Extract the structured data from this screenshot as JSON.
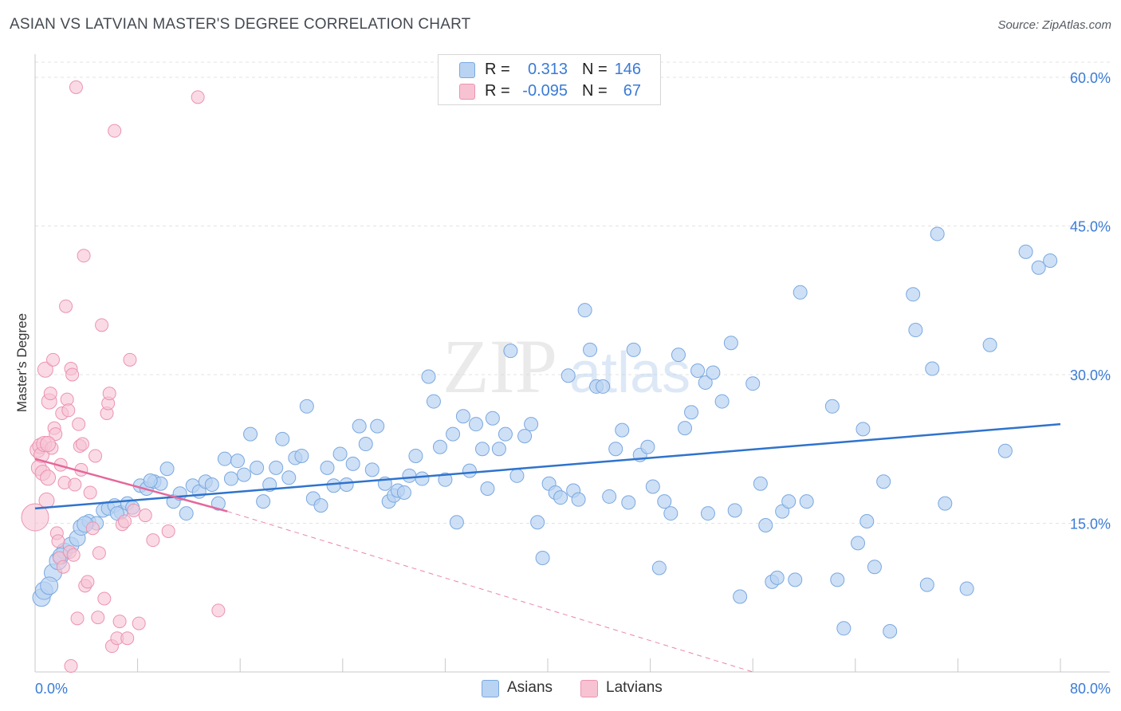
{
  "header": {
    "title": "ASIAN VS LATVIAN MASTER'S DEGREE CORRELATION CHART",
    "source": "Source: ZipAtlas.com"
  },
  "watermark": {
    "zip": "ZIP",
    "atlas": "atlas"
  },
  "legend": {
    "rows": [
      {
        "r_label": "R =",
        "r_value": "0.313",
        "n_label": "N =",
        "n_value": "146"
      },
      {
        "r_label": "R =",
        "r_value": "-0.095",
        "n_label": "N =",
        "n_value": "67"
      }
    ]
  },
  "bottom_legend": {
    "asians": "Asians",
    "latvians": "Latvians"
  },
  "colors": {
    "asian_fill": "#b9d3f2",
    "asian_stroke": "#7aa8e0",
    "asian_line": "#2f73cc",
    "latvian_fill": "#f7c3d3",
    "latvian_stroke": "#ec93b0",
    "latvian_line": "#e4679a",
    "tick_label": "#3a7bd5",
    "grid": "#e3e3e3"
  },
  "chart_data": {
    "type": "scatter",
    "title": "ASIAN VS LATVIAN MASTER'S DEGREE CORRELATION CHART",
    "xlabel": "",
    "ylabel": "Master's Degree",
    "xlim": [
      0,
      80
    ],
    "ylim": [
      0,
      60
    ],
    "x_tick_labels": [
      "0.0%",
      "80.0%"
    ],
    "y_ticks": [
      15,
      30,
      45,
      60
    ],
    "y_tick_labels": [
      "15.0%",
      "30.0%",
      "45.0%",
      "60.0%"
    ],
    "grid": true,
    "legend_position": "top-center",
    "series": [
      {
        "name": "Asians",
        "r": 0.313,
        "n": 146,
        "trend": {
          "x": [
            0,
            80
          ],
          "y": [
            16.5,
            25.0
          ]
        },
        "points": [
          [
            0.5,
            7.5
          ],
          [
            0.7,
            8.2
          ],
          [
            1.4,
            10.0
          ],
          [
            1.8,
            11.2
          ],
          [
            2.3,
            12.2
          ],
          [
            2.8,
            12.8
          ],
          [
            3.3,
            13.5
          ],
          [
            3.6,
            14.6
          ],
          [
            4.2,
            15.2
          ],
          [
            4.8,
            15.0
          ],
          [
            5.3,
            16.3
          ],
          [
            5.7,
            16.5
          ],
          [
            6.2,
            16.8
          ],
          [
            6.7,
            16.1
          ],
          [
            7.2,
            17.0
          ],
          [
            7.6,
            16.6
          ],
          [
            8.2,
            18.8
          ],
          [
            8.7,
            18.5
          ],
          [
            9.3,
            19.2
          ],
          [
            9.8,
            19.0
          ],
          [
            10.3,
            20.5
          ],
          [
            10.8,
            17.2
          ],
          [
            11.3,
            18.0
          ],
          [
            11.8,
            16.0
          ],
          [
            12.3,
            18.8
          ],
          [
            12.8,
            18.2
          ],
          [
            13.3,
            19.2
          ],
          [
            13.8,
            18.9
          ],
          [
            14.3,
            17.0
          ],
          [
            14.8,
            21.5
          ],
          [
            15.3,
            19.5
          ],
          [
            15.8,
            21.3
          ],
          [
            16.3,
            19.9
          ],
          [
            16.8,
            24.0
          ],
          [
            17.3,
            20.6
          ],
          [
            17.8,
            17.2
          ],
          [
            18.3,
            18.9
          ],
          [
            18.8,
            20.6
          ],
          [
            19.3,
            23.5
          ],
          [
            19.8,
            19.6
          ],
          [
            20.3,
            21.6
          ],
          [
            20.8,
            21.8
          ],
          [
            21.2,
            26.8
          ],
          [
            21.7,
            17.5
          ],
          [
            22.3,
            16.8
          ],
          [
            22.8,
            20.6
          ],
          [
            23.3,
            18.8
          ],
          [
            23.8,
            22.0
          ],
          [
            24.3,
            18.9
          ],
          [
            24.8,
            21.0
          ],
          [
            25.3,
            24.8
          ],
          [
            25.8,
            23.0
          ],
          [
            26.3,
            20.4
          ],
          [
            26.7,
            24.8
          ],
          [
            27.3,
            19.0
          ],
          [
            27.6,
            17.2
          ],
          [
            28.0,
            17.8
          ],
          [
            28.3,
            18.3
          ],
          [
            28.8,
            18.1
          ],
          [
            29.2,
            19.8
          ],
          [
            29.7,
            21.8
          ],
          [
            30.2,
            19.5
          ],
          [
            30.7,
            29.8
          ],
          [
            31.1,
            27.3
          ],
          [
            31.6,
            22.7
          ],
          [
            32.0,
            19.4
          ],
          [
            32.6,
            24.0
          ],
          [
            32.9,
            15.1
          ],
          [
            33.4,
            25.8
          ],
          [
            33.9,
            20.3
          ],
          [
            34.4,
            25.0
          ],
          [
            34.9,
            22.5
          ],
          [
            35.3,
            18.5
          ],
          [
            35.7,
            25.6
          ],
          [
            36.2,
            22.5
          ],
          [
            36.7,
            24.0
          ],
          [
            37.1,
            32.4
          ],
          [
            37.6,
            19.8
          ],
          [
            38.2,
            23.8
          ],
          [
            38.7,
            25.0
          ],
          [
            39.2,
            15.1
          ],
          [
            39.6,
            11.5
          ],
          [
            40.1,
            19.0
          ],
          [
            40.6,
            18.1
          ],
          [
            41.0,
            17.6
          ],
          [
            41.6,
            29.9
          ],
          [
            42.0,
            18.3
          ],
          [
            42.4,
            17.4
          ],
          [
            42.9,
            36.5
          ],
          [
            43.3,
            32.5
          ],
          [
            43.8,
            28.8
          ],
          [
            44.3,
            28.8
          ],
          [
            44.8,
            17.7
          ],
          [
            45.3,
            22.5
          ],
          [
            45.8,
            24.4
          ],
          [
            46.3,
            17.1
          ],
          [
            46.7,
            32.5
          ],
          [
            47.2,
            21.9
          ],
          [
            47.8,
            22.7
          ],
          [
            48.2,
            18.7
          ],
          [
            48.7,
            10.5
          ],
          [
            49.1,
            17.2
          ],
          [
            49.6,
            16.0
          ],
          [
            50.2,
            32.0
          ],
          [
            50.7,
            24.6
          ],
          [
            51.2,
            26.2
          ],
          [
            51.7,
            30.4
          ],
          [
            52.3,
            29.2
          ],
          [
            52.5,
            16.0
          ],
          [
            52.9,
            30.2
          ],
          [
            53.6,
            27.3
          ],
          [
            54.3,
            33.2
          ],
          [
            54.6,
            16.3
          ],
          [
            55.0,
            7.6
          ],
          [
            56.0,
            29.1
          ],
          [
            56.6,
            19.0
          ],
          [
            57.0,
            14.8
          ],
          [
            57.5,
            9.1
          ],
          [
            57.9,
            9.5
          ],
          [
            58.3,
            16.2
          ],
          [
            58.8,
            17.2
          ],
          [
            59.3,
            9.3
          ],
          [
            59.7,
            38.3
          ],
          [
            60.2,
            17.2
          ],
          [
            62.2,
            26.8
          ],
          [
            62.6,
            9.3
          ],
          [
            63.1,
            4.4
          ],
          [
            64.2,
            13.0
          ],
          [
            64.6,
            24.5
          ],
          [
            64.9,
            15.2
          ],
          [
            65.5,
            10.6
          ],
          [
            66.2,
            19.2
          ],
          [
            66.7,
            4.1
          ],
          [
            68.5,
            38.1
          ],
          [
            68.7,
            34.5
          ],
          [
            69.6,
            8.8
          ],
          [
            70.0,
            30.6
          ],
          [
            70.4,
            44.2
          ],
          [
            71.0,
            17.0
          ],
          [
            72.7,
            8.4
          ],
          [
            74.5,
            33.0
          ],
          [
            75.7,
            22.3
          ],
          [
            77.3,
            42.4
          ],
          [
            78.3,
            40.8
          ],
          [
            79.2,
            41.5
          ],
          [
            1.1,
            8.7
          ],
          [
            2.0,
            11.7
          ],
          [
            3.9,
            14.9
          ],
          [
            6.4,
            16.0
          ],
          [
            9.0,
            19.3
          ]
        ]
      },
      {
        "name": "Latvians",
        "r": -0.095,
        "n": 67,
        "trend": {
          "x": [
            0,
            15
          ],
          "y": [
            21.5,
            16.2
          ]
        },
        "trend_extended": {
          "x": [
            15,
            56
          ],
          "y": [
            16.2,
            0
          ]
        },
        "points": [
          [
            0.0,
            15.6
          ],
          [
            0.2,
            22.4
          ],
          [
            0.3,
            20.6
          ],
          [
            0.4,
            22.8
          ],
          [
            0.5,
            21.9
          ],
          [
            0.6,
            20.1
          ],
          [
            0.7,
            23.0
          ],
          [
            0.8,
            30.5
          ],
          [
            0.9,
            17.3
          ],
          [
            1.0,
            19.6
          ],
          [
            1.1,
            27.3
          ],
          [
            1.2,
            28.1
          ],
          [
            1.3,
            22.6
          ],
          [
            1.4,
            31.5
          ],
          [
            1.5,
            24.6
          ],
          [
            1.6,
            24.0
          ],
          [
            1.7,
            14.0
          ],
          [
            1.8,
            13.2
          ],
          [
            1.9,
            11.5
          ],
          [
            2.0,
            20.9
          ],
          [
            2.1,
            26.1
          ],
          [
            2.2,
            10.6
          ],
          [
            2.3,
            19.1
          ],
          [
            2.4,
            36.9
          ],
          [
            2.5,
            27.5
          ],
          [
            2.6,
            26.4
          ],
          [
            2.7,
            12.1
          ],
          [
            2.8,
            30.6
          ],
          [
            2.9,
            30.0
          ],
          [
            3.0,
            11.8
          ],
          [
            3.1,
            18.9
          ],
          [
            3.2,
            59.0
          ],
          [
            3.3,
            5.4
          ],
          [
            3.4,
            25.0
          ],
          [
            3.5,
            22.8
          ],
          [
            3.6,
            20.4
          ],
          [
            3.7,
            23.0
          ],
          [
            3.8,
            42.0
          ],
          [
            3.9,
            8.7
          ],
          [
            4.1,
            9.1
          ],
          [
            4.3,
            18.1
          ],
          [
            4.5,
            14.5
          ],
          [
            4.7,
            21.8
          ],
          [
            4.9,
            5.5
          ],
          [
            5.0,
            12.0
          ],
          [
            5.2,
            35.0
          ],
          [
            5.4,
            7.4
          ],
          [
            5.6,
            26.1
          ],
          [
            5.7,
            27.1
          ],
          [
            5.8,
            28.1
          ],
          [
            6.0,
            2.6
          ],
          [
            6.2,
            54.6
          ],
          [
            6.4,
            3.4
          ],
          [
            6.6,
            5.1
          ],
          [
            6.8,
            14.9
          ],
          [
            7.0,
            15.2
          ],
          [
            7.2,
            3.4
          ],
          [
            7.4,
            31.5
          ],
          [
            7.7,
            16.3
          ],
          [
            8.1,
            4.9
          ],
          [
            8.6,
            15.8
          ],
          [
            9.2,
            13.3
          ],
          [
            10.4,
            14.2
          ],
          [
            12.7,
            58.0
          ],
          [
            14.3,
            6.2
          ],
          [
            2.8,
            0.6
          ],
          [
            1.0,
            23.0
          ]
        ]
      }
    ]
  }
}
